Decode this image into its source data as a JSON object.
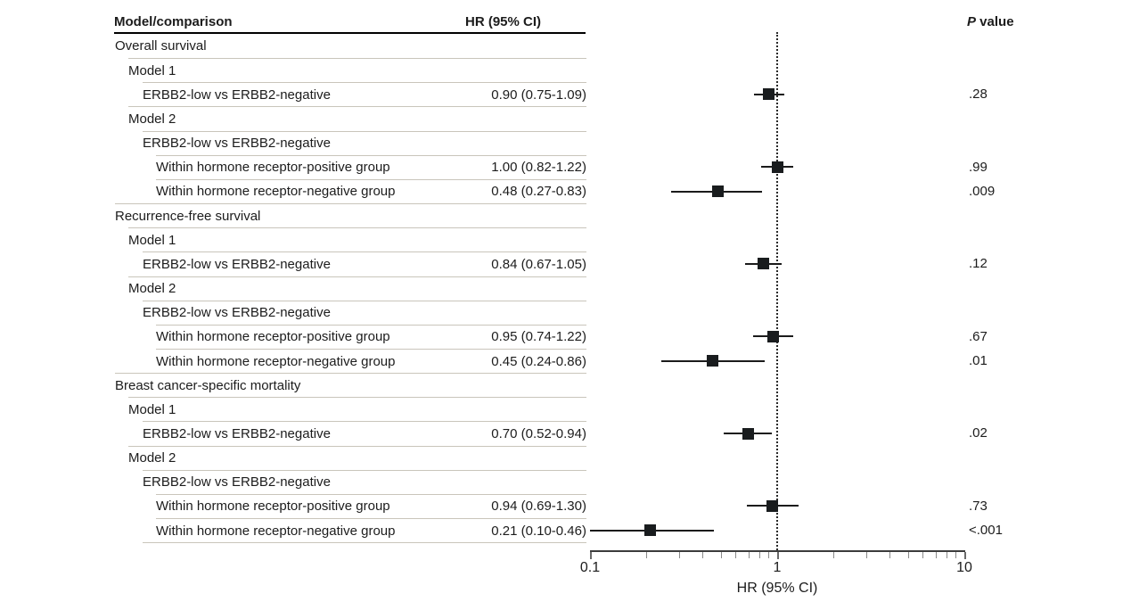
{
  "header": {
    "model_comparison": "Model/comparison",
    "hr_label": "HR (95% CI)",
    "p_italic": "P",
    "p_rest": " value"
  },
  "colors": {
    "text": "#1c1c1c",
    "separator": "#c9c5bb",
    "header_rule": "#000000",
    "marker": "#191c1e",
    "axis": "#3c3c3c",
    "tick": "#8a8a8a"
  },
  "chart_data": {
    "type": "forest",
    "title": "",
    "xlabel": "HR (95% CI)",
    "xscale": "log",
    "xlim": [
      0.1,
      10
    ],
    "x_major_ticks": [
      "0.1",
      "1",
      "10"
    ],
    "x_minor_ticks": [
      0.2,
      0.3,
      0.4,
      0.5,
      0.6,
      0.7,
      0.8,
      0.9,
      2,
      3,
      4,
      5,
      6,
      7,
      8,
      9
    ],
    "reference_line": 1,
    "grid": false,
    "legend": "none",
    "marker_shape": "square",
    "rows": [
      {
        "label": "Overall survival",
        "level": 0
      },
      {
        "label": "Model 1",
        "level": 1
      },
      {
        "label": "ERBB2-low vs ERBB2-negative",
        "level": 2,
        "hr_text": "0.90 (0.75-1.09)",
        "hr": 0.9,
        "lo": 0.75,
        "hi": 1.09,
        "p": ".28"
      },
      {
        "label": "Model 2",
        "level": 1
      },
      {
        "label": "ERBB2-low vs ERBB2-negative",
        "level": 2
      },
      {
        "label": "Within hormone receptor-positive group",
        "level": 3,
        "hr_text": "1.00 (0.82-1.22)",
        "hr": 1.0,
        "lo": 0.82,
        "hi": 1.22,
        "p": ".99"
      },
      {
        "label": "Within hormone receptor-negative group",
        "level": 3,
        "hr_text": "0.48 (0.27-0.83)",
        "hr": 0.48,
        "lo": 0.27,
        "hi": 0.83,
        "p": ".009"
      },
      {
        "label": "Recurrence-free survival",
        "level": 0
      },
      {
        "label": "Model 1",
        "level": 1
      },
      {
        "label": "ERBB2-low vs ERBB2-negative",
        "level": 2,
        "hr_text": "0.84 (0.67-1.05)",
        "hr": 0.84,
        "lo": 0.67,
        "hi": 1.05,
        "p": ".12"
      },
      {
        "label": "Model 2",
        "level": 1
      },
      {
        "label": "ERBB2-low vs ERBB2-negative",
        "level": 2
      },
      {
        "label": "Within hormone receptor-positive group",
        "level": 3,
        "hr_text": "0.95 (0.74-1.22)",
        "hr": 0.95,
        "lo": 0.74,
        "hi": 1.22,
        "p": ".67"
      },
      {
        "label": "Within hormone receptor-negative group",
        "level": 3,
        "hr_text": "0.45 (0.24-0.86)",
        "hr": 0.45,
        "lo": 0.24,
        "hi": 0.86,
        "p": ".01"
      },
      {
        "label": "Breast cancer-specific mortality",
        "level": 0
      },
      {
        "label": "Model 1",
        "level": 1
      },
      {
        "label": "ERBB2-low vs ERBB2-negative",
        "level": 2,
        "hr_text": "0.70 (0.52-0.94)",
        "hr": 0.7,
        "lo": 0.52,
        "hi": 0.94,
        "p": ".02"
      },
      {
        "label": "Model 2",
        "level": 1
      },
      {
        "label": "ERBB2-low vs ERBB2-negative",
        "level": 2
      },
      {
        "label": "Within hormone receptor-positive group",
        "level": 3,
        "hr_text": "0.94 (0.69-1.30)",
        "hr": 0.94,
        "lo": 0.69,
        "hi": 1.3,
        "p": ".73"
      },
      {
        "label": "Within hormone receptor-negative group",
        "level": 3,
        "hr_text": "0.21 (0.10-0.46)",
        "hr": 0.21,
        "lo": 0.1,
        "hi": 0.46,
        "p": "<.001"
      }
    ]
  }
}
